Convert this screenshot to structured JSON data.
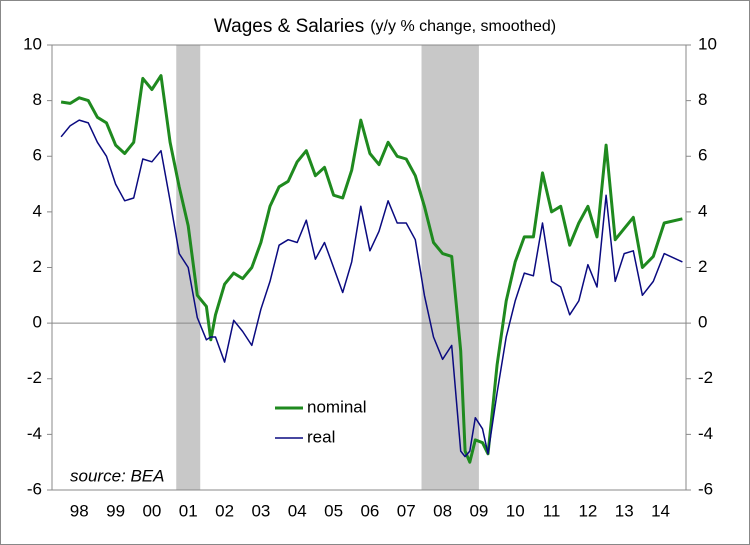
{
  "chart_data": {
    "type": "line",
    "title": "Wages & Salaries",
    "subtitle": "(y/y % change, smoothed)",
    "annotations": [
      "source: BEA"
    ],
    "x": [
      1998,
      1998.25,
      1998.5,
      1998.75,
      1999,
      1999.25,
      1999.5,
      1999.75,
      2000,
      2000.25,
      2000.5,
      2000.75,
      2001,
      2001.25,
      2001.5,
      2001.75,
      2002,
      2002.12,
      2002.25,
      2002.5,
      2002.75,
      2003,
      2003.25,
      2003.5,
      2003.75,
      2004,
      2004.25,
      2004.5,
      2004.75,
      2005,
      2005.25,
      2005.5,
      2005.75,
      2006,
      2006.25,
      2006.5,
      2006.75,
      2007,
      2007.25,
      2007.5,
      2007.75,
      2008,
      2008.25,
      2008.5,
      2008.75,
      2009,
      2009.12,
      2009.25,
      2009.4,
      2009.6,
      2009.75,
      2010,
      2010.25,
      2010.5,
      2010.75,
      2011,
      2011.25,
      2011.5,
      2011.75,
      2012,
      2012.25,
      2012.5,
      2012.75,
      2013,
      2013.25,
      2013.5,
      2013.75,
      2014,
      2014.3,
      2014.6,
      2015.1
    ],
    "series": [
      {
        "name": "nominal",
        "color": "#1f8a1f",
        "values": [
          7.95,
          7.9,
          8.1,
          8.0,
          7.4,
          7.2,
          6.4,
          6.1,
          6.5,
          8.8,
          8.4,
          8.9,
          6.5,
          4.9,
          3.5,
          1.0,
          0.6,
          -0.6,
          0.3,
          1.4,
          1.8,
          1.6,
          2.0,
          2.9,
          4.2,
          4.9,
          5.1,
          5.8,
          6.2,
          5.3,
          5.6,
          4.6,
          4.5,
          5.5,
          7.3,
          6.1,
          5.7,
          6.5,
          6.0,
          5.9,
          5.3,
          4.2,
          2.9,
          2.5,
          2.4,
          -1.0,
          -4.6,
          -5.0,
          -4.2,
          -4.3,
          -4.7,
          -1.5,
          0.8,
          2.2,
          3.1,
          3.1,
          5.4,
          4.0,
          4.2,
          2.8,
          3.6,
          4.2,
          3.1,
          6.4,
          3.0,
          3.4,
          3.8,
          2.0,
          2.4,
          3.6,
          3.75
        ]
      },
      {
        "name": "real",
        "color": "#0a0a80",
        "values": [
          6.7,
          7.1,
          7.3,
          7.2,
          6.5,
          6.0,
          5.0,
          4.4,
          4.5,
          5.9,
          5.8,
          6.2,
          4.4,
          2.5,
          2.0,
          0.2,
          -0.6,
          -0.5,
          -0.5,
          -1.4,
          0.1,
          -0.3,
          -0.8,
          0.5,
          1.5,
          2.8,
          3.0,
          2.9,
          3.7,
          2.3,
          2.9,
          2.0,
          1.1,
          2.2,
          4.2,
          2.6,
          3.3,
          4.4,
          3.6,
          3.6,
          3.0,
          1.0,
          -0.5,
          -1.3,
          -0.8,
          -4.6,
          -4.8,
          -4.6,
          -3.4,
          -3.8,
          -4.7,
          -2.5,
          -0.5,
          0.8,
          1.8,
          1.7,
          3.6,
          1.5,
          1.3,
          0.3,
          0.8,
          2.1,
          1.3,
          4.6,
          1.5,
          2.5,
          2.6,
          1.0,
          1.5,
          2.5,
          2.2
        ]
      }
    ],
    "recessions": [
      [
        2001.17,
        2001.83
      ],
      [
        2007.92,
        2009.5
      ]
    ],
    "recession_color": "#c8c8c8",
    "xlim": [
      1997.75,
      2015.2
    ],
    "xticks": [
      {
        "value": 1998.5,
        "label": "98"
      },
      {
        "value": 1999.5,
        "label": "99"
      },
      {
        "value": 2000.5,
        "label": "00"
      },
      {
        "value": 2001.5,
        "label": "01"
      },
      {
        "value": 2002.5,
        "label": "02"
      },
      {
        "value": 2003.5,
        "label": "03"
      },
      {
        "value": 2004.5,
        "label": "04"
      },
      {
        "value": 2005.5,
        "label": "05"
      },
      {
        "value": 2006.5,
        "label": "06"
      },
      {
        "value": 2007.5,
        "label": "07"
      },
      {
        "value": 2008.5,
        "label": "08"
      },
      {
        "value": 2009.5,
        "label": "09"
      },
      {
        "value": 2010.5,
        "label": "10"
      },
      {
        "value": 2011.5,
        "label": "11"
      },
      {
        "value": 2012.5,
        "label": "12"
      },
      {
        "value": 2013.5,
        "label": "13"
      },
      {
        "value": 2014.5,
        "label": "14"
      }
    ],
    "ylim": [
      -6,
      10
    ],
    "yticks": [
      -6,
      -4,
      -2,
      0,
      2,
      4,
      6,
      8,
      10
    ],
    "y2lim": [
      -6,
      10
    ],
    "y2ticks": [
      -6,
      -4,
      -2,
      0,
      2,
      4,
      6,
      8,
      10
    ],
    "grid": false,
    "legend": "lower center"
  }
}
